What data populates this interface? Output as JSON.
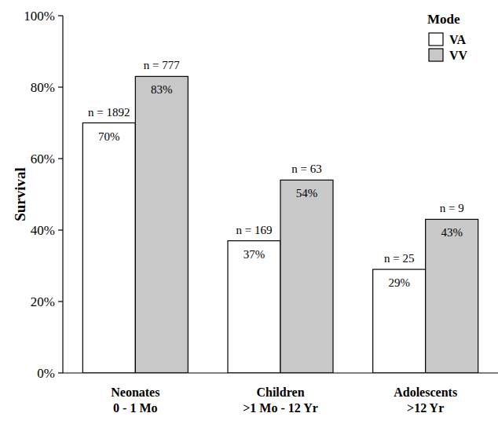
{
  "chart_data": {
    "type": "bar",
    "y_label": "Survival",
    "categories": [
      "Neonates\n0 - 1 Mo",
      "Children\n>1 Mo - 12 Yr",
      "Adolescents\n>12 Yr"
    ],
    "series": [
      {
        "name": "VA",
        "color": "#ffffff",
        "values": [
          70,
          37,
          29
        ],
        "value_labels": [
          "70%",
          "37%",
          "29%"
        ],
        "n_labels": [
          "n = 1892",
          "n = 169",
          "n = 25"
        ]
      },
      {
        "name": "VV",
        "color": "#c8c8c8",
        "values": [
          83,
          54,
          43
        ],
        "value_labels": [
          "83%",
          "54%",
          "43%"
        ],
        "n_labels": [
          "n = 777",
          "n = 63",
          "n = 9"
        ]
      }
    ],
    "legend_title": "Mode",
    "legend": "top-right",
    "ylim": [
      0,
      100
    ],
    "yticks": [
      {
        "value": 0,
        "label": "0%"
      },
      {
        "value": 20,
        "label": "20%"
      },
      {
        "value": 40,
        "label": "40%"
      },
      {
        "value": 60,
        "label": "60%"
      },
      {
        "value": 80,
        "label": "80%"
      },
      {
        "value": 100,
        "label": "100%"
      }
    ],
    "grid": false,
    "data_labels": true
  }
}
